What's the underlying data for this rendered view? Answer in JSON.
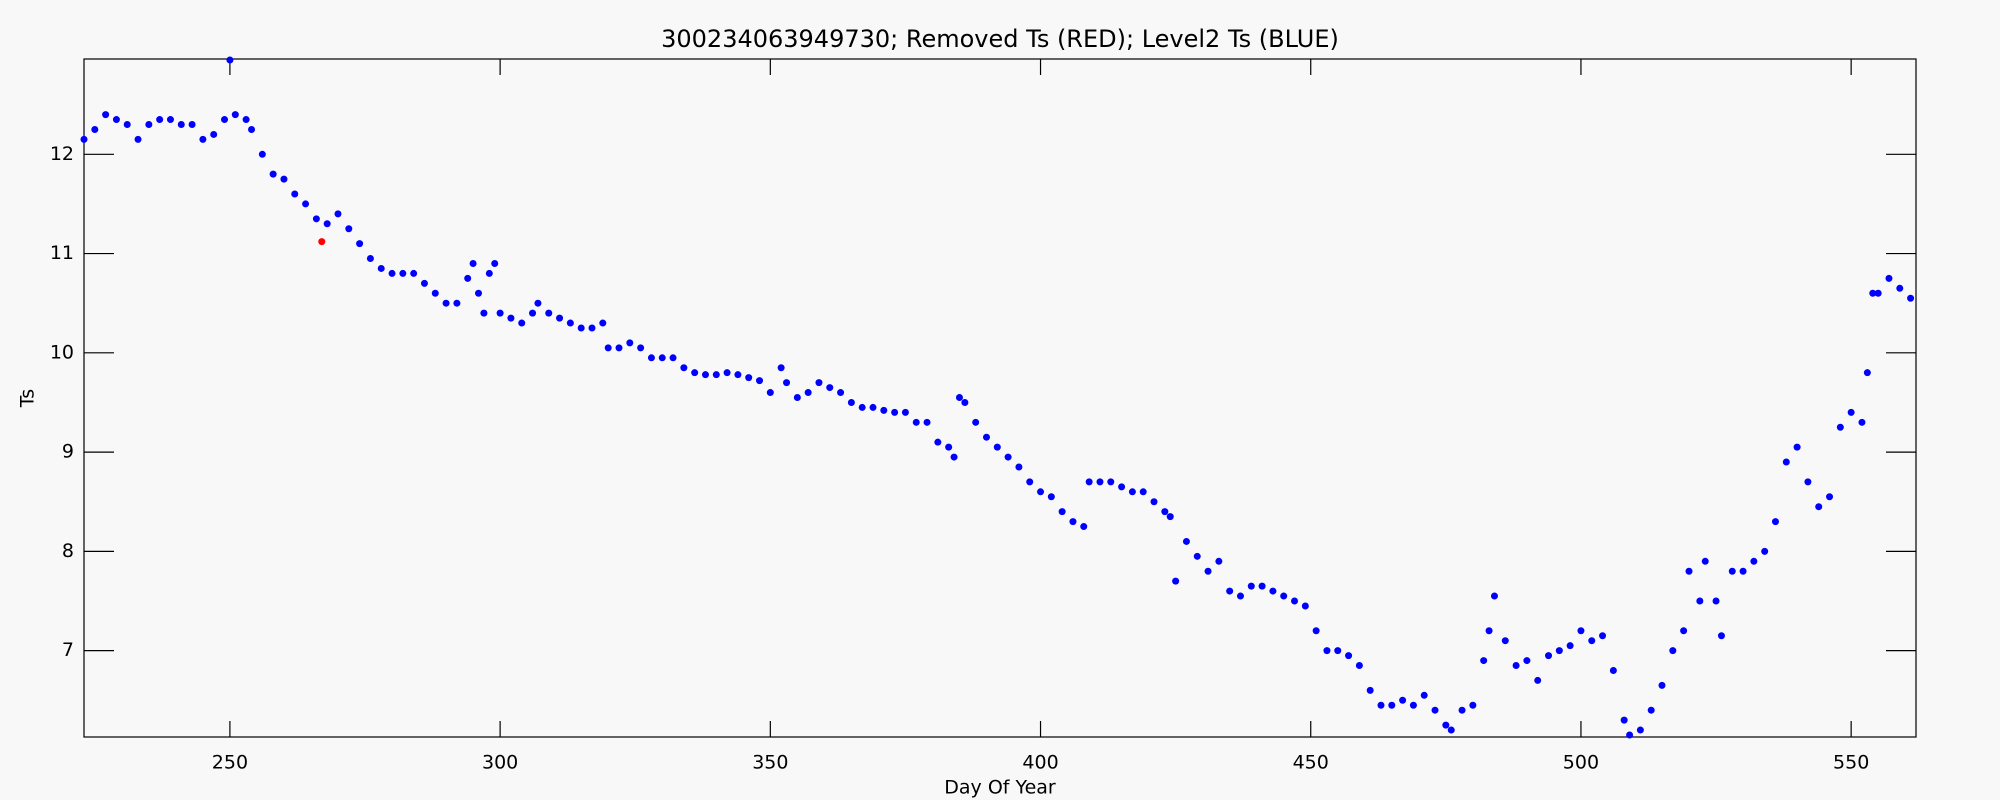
{
  "chart_data": {
    "type": "scatter",
    "title": "300234063949730; Removed Ts (RED); Level2 Ts (BLUE)",
    "x_label": "Day Of Year",
    "y_label": "Ts",
    "xlim": [
      223,
      562
    ],
    "ylim": [
      6.13,
      12.96
    ],
    "xticks": [
      250,
      300,
      350,
      400,
      450,
      500,
      550
    ],
    "yticks": [
      7,
      8,
      9,
      10,
      11,
      12
    ],
    "series": [
      {
        "color": "#0000ff",
        "x": [
          223,
          225,
          227,
          229,
          231,
          233,
          235,
          237,
          239,
          241,
          243,
          245,
          247,
          249,
          250,
          251,
          253,
          254,
          256,
          258,
          260,
          262,
          264,
          266,
          268,
          270,
          272,
          274,
          276,
          278,
          280,
          282,
          284,
          286,
          288,
          290,
          292,
          294,
          295,
          296,
          297,
          298,
          299,
          300,
          302,
          304,
          306,
          307,
          309,
          311,
          313,
          315,
          317,
          319,
          320,
          322,
          324,
          326,
          328,
          330,
          332,
          334,
          336,
          338,
          340,
          342,
          344,
          346,
          348,
          350,
          352,
          353,
          355,
          357,
          359,
          361,
          363,
          365,
          367,
          369,
          371,
          373,
          375,
          377,
          379,
          381,
          383,
          384,
          385,
          386,
          388,
          390,
          392,
          394,
          396,
          398,
          400,
          402,
          404,
          406,
          408,
          409,
          411,
          413,
          415,
          417,
          419,
          421,
          423,
          424,
          425,
          427,
          429,
          431,
          433,
          435,
          437,
          439,
          441,
          443,
          445,
          447,
          449,
          451,
          453,
          455,
          457,
          459,
          461,
          463,
          465,
          467,
          469,
          471,
          473,
          475,
          476,
          478,
          480,
          482,
          483,
          484,
          486,
          488,
          490,
          492,
          494,
          496,
          498,
          500,
          502,
          504,
          506,
          508,
          509,
          511,
          513,
          515,
          517,
          519,
          520,
          522,
          523,
          525,
          526,
          528,
          530,
          532,
          534,
          536,
          538,
          540,
          542,
          544,
          546,
          548,
          550,
          552,
          553,
          554,
          555,
          557,
          559,
          561
        ],
        "values": [
          12.15,
          12.25,
          12.4,
          12.35,
          12.3,
          12.15,
          12.3,
          12.35,
          12.35,
          12.3,
          12.3,
          12.15,
          12.2,
          12.35,
          12.95,
          12.4,
          12.35,
          12.25,
          12.0,
          11.8,
          11.75,
          11.6,
          11.5,
          11.35,
          11.3,
          11.4,
          11.25,
          11.1,
          10.95,
          10.85,
          10.8,
          10.8,
          10.8,
          10.7,
          10.6,
          10.5,
          10.5,
          10.75,
          10.9,
          10.6,
          10.4,
          10.8,
          10.9,
          10.4,
          10.35,
          10.3,
          10.4,
          10.5,
          10.4,
          10.35,
          10.3,
          10.25,
          10.25,
          10.3,
          10.05,
          10.05,
          10.1,
          10.05,
          9.95,
          9.95,
          9.95,
          9.85,
          9.8,
          9.78,
          9.78,
          9.8,
          9.78,
          9.75,
          9.72,
          9.6,
          9.85,
          9.7,
          9.55,
          9.6,
          9.7,
          9.65,
          9.6,
          9.5,
          9.45,
          9.45,
          9.42,
          9.4,
          9.4,
          9.3,
          9.3,
          9.1,
          9.05,
          8.95,
          9.55,
          9.5,
          9.3,
          9.15,
          9.05,
          8.95,
          8.85,
          8.7,
          8.6,
          8.55,
          8.4,
          8.3,
          8.25,
          8.7,
          8.7,
          8.7,
          8.65,
          8.6,
          8.6,
          8.5,
          8.4,
          8.35,
          7.7,
          8.1,
          7.95,
          7.8,
          7.9,
          7.6,
          7.55,
          7.65,
          7.65,
          7.6,
          7.55,
          7.5,
          7.45,
          7.2,
          7.0,
          7.0,
          6.95,
          6.85,
          6.6,
          6.45,
          6.45,
          6.5,
          6.45,
          6.55,
          6.4,
          6.25,
          6.2,
          6.4,
          6.45,
          6.9,
          7.2,
          7.55,
          7.1,
          6.85,
          6.9,
          6.7,
          6.95,
          7.0,
          7.05,
          7.2,
          7.1,
          7.15,
          6.8,
          6.3,
          6.15,
          6.2,
          6.4,
          6.65,
          7.0,
          7.2,
          7.8,
          7.5,
          7.9,
          7.5,
          7.15,
          7.8,
          7.8,
          7.9,
          8.0,
          8.3,
          8.9,
          9.05,
          8.7,
          8.45,
          8.55,
          9.25,
          9.4,
          9.3,
          9.8,
          10.6,
          10.6,
          10.75,
          10.65,
          10.55
        ]
      },
      {
        "color": "#ff0000",
        "x": [
          267
        ],
        "values": [
          11.12
        ]
      }
    ]
  }
}
